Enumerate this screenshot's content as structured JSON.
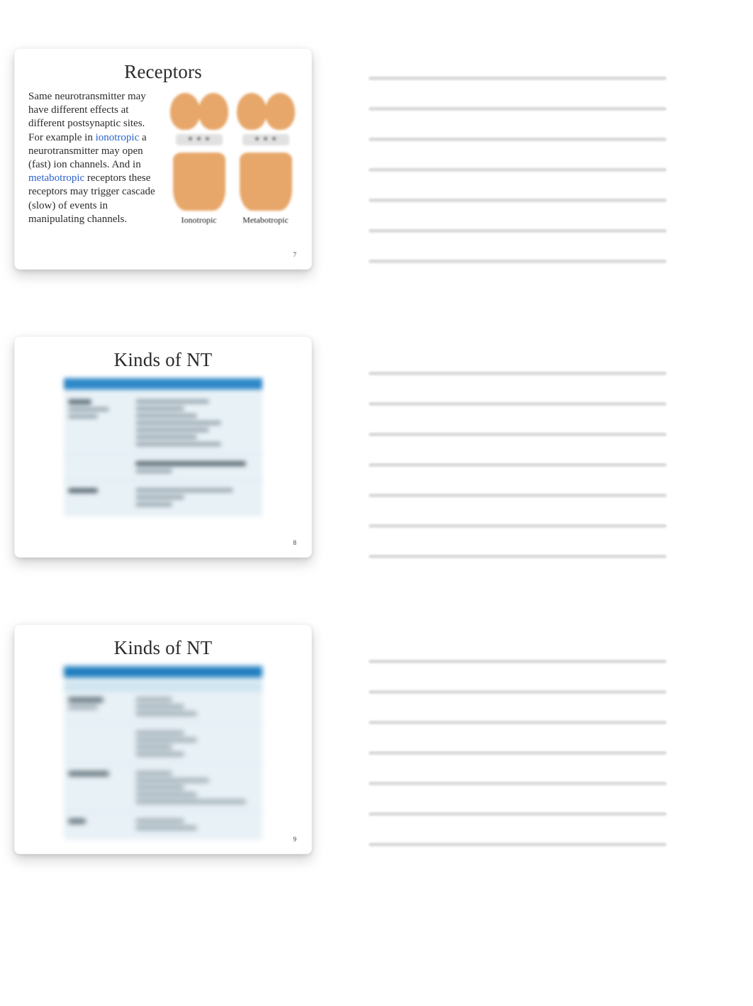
{
  "slides": [
    {
      "title": "Receptors",
      "page": "7",
      "body": {
        "pre1": "Same neurotransmitter may have different effects at different postsynaptic sites. For example in ",
        "link1": "ionotropic",
        "mid1": " a neurotransmitter may open (fast) ion channels. And in ",
        "link2": "metabotropic",
        "post1": " receptors these receptors may trigger cascade (slow) of events in manipulating channels."
      },
      "fig_caption_left": "Ionotropic",
      "fig_caption_right": "Metabotropic"
    },
    {
      "title": "Kinds of NT",
      "page": "8"
    },
    {
      "title": "Kinds of NT",
      "page": "9"
    }
  ],
  "note_lines_per_slide": 7,
  "colors": {
    "link": "#2b62c9",
    "synapse_fill": "#e7a76a",
    "table_header": "#2e87c8",
    "table_bg": "#e8f1f6",
    "noteline": "#dcdcdc"
  }
}
